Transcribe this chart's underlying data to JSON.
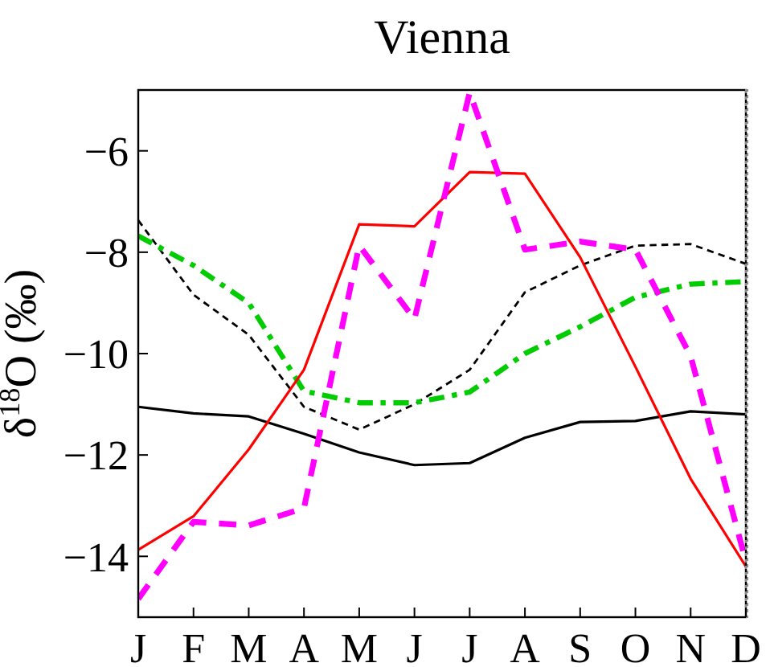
{
  "chart_data": {
    "type": "line",
    "title": "Vienna",
    "ylabel": "δ$^{18}$O (‰)",
    "categories": [
      "J",
      "F",
      "M",
      "A",
      "M",
      "J",
      "J",
      "A",
      "S",
      "O",
      "N",
      "D"
    ],
    "ylim": [
      -15.2,
      -4.8
    ],
    "yticks": [
      -14,
      -12,
      -10,
      -8,
      -6
    ],
    "series": [
      {
        "color": "#000000",
        "line_style": "solid",
        "values": [
          -11.05,
          -11.18,
          -11.24,
          -11.58,
          -11.95,
          -12.2,
          -12.16,
          -11.66,
          -11.35,
          -11.33,
          -11.14,
          -11.2
        ]
      },
      {
        "color": "#000000",
        "line_style": "dashed",
        "values": [
          -7.37,
          -8.84,
          -9.63,
          -11.05,
          -11.5,
          -11.0,
          -10.32,
          -8.79,
          -8.26,
          -7.87,
          -7.84,
          -8.23
        ]
      },
      {
        "color": "#00cc00",
        "line_style": "dashdot",
        "values": [
          -7.68,
          -8.26,
          -9.0,
          -10.74,
          -10.97,
          -10.97,
          -10.76,
          -10.0,
          -9.47,
          -8.89,
          -8.63,
          -8.58
        ]
      },
      {
        "color": "#ff0000",
        "line_style": "solid",
        "values": [
          -13.87,
          -13.21,
          -11.89,
          -10.32,
          -7.45,
          -7.49,
          -6.42,
          -6.45,
          -8.1,
          -10.26,
          -12.47,
          -14.2
        ]
      },
      {
        "color": "#ff00ff",
        "line_style": "dashed",
        "values": [
          -14.84,
          -13.32,
          -13.39,
          -13.05,
          -7.87,
          -9.32,
          -4.85,
          -7.95,
          -7.79,
          -7.95,
          -10.05,
          -14.1
        ]
      }
    ]
  }
}
